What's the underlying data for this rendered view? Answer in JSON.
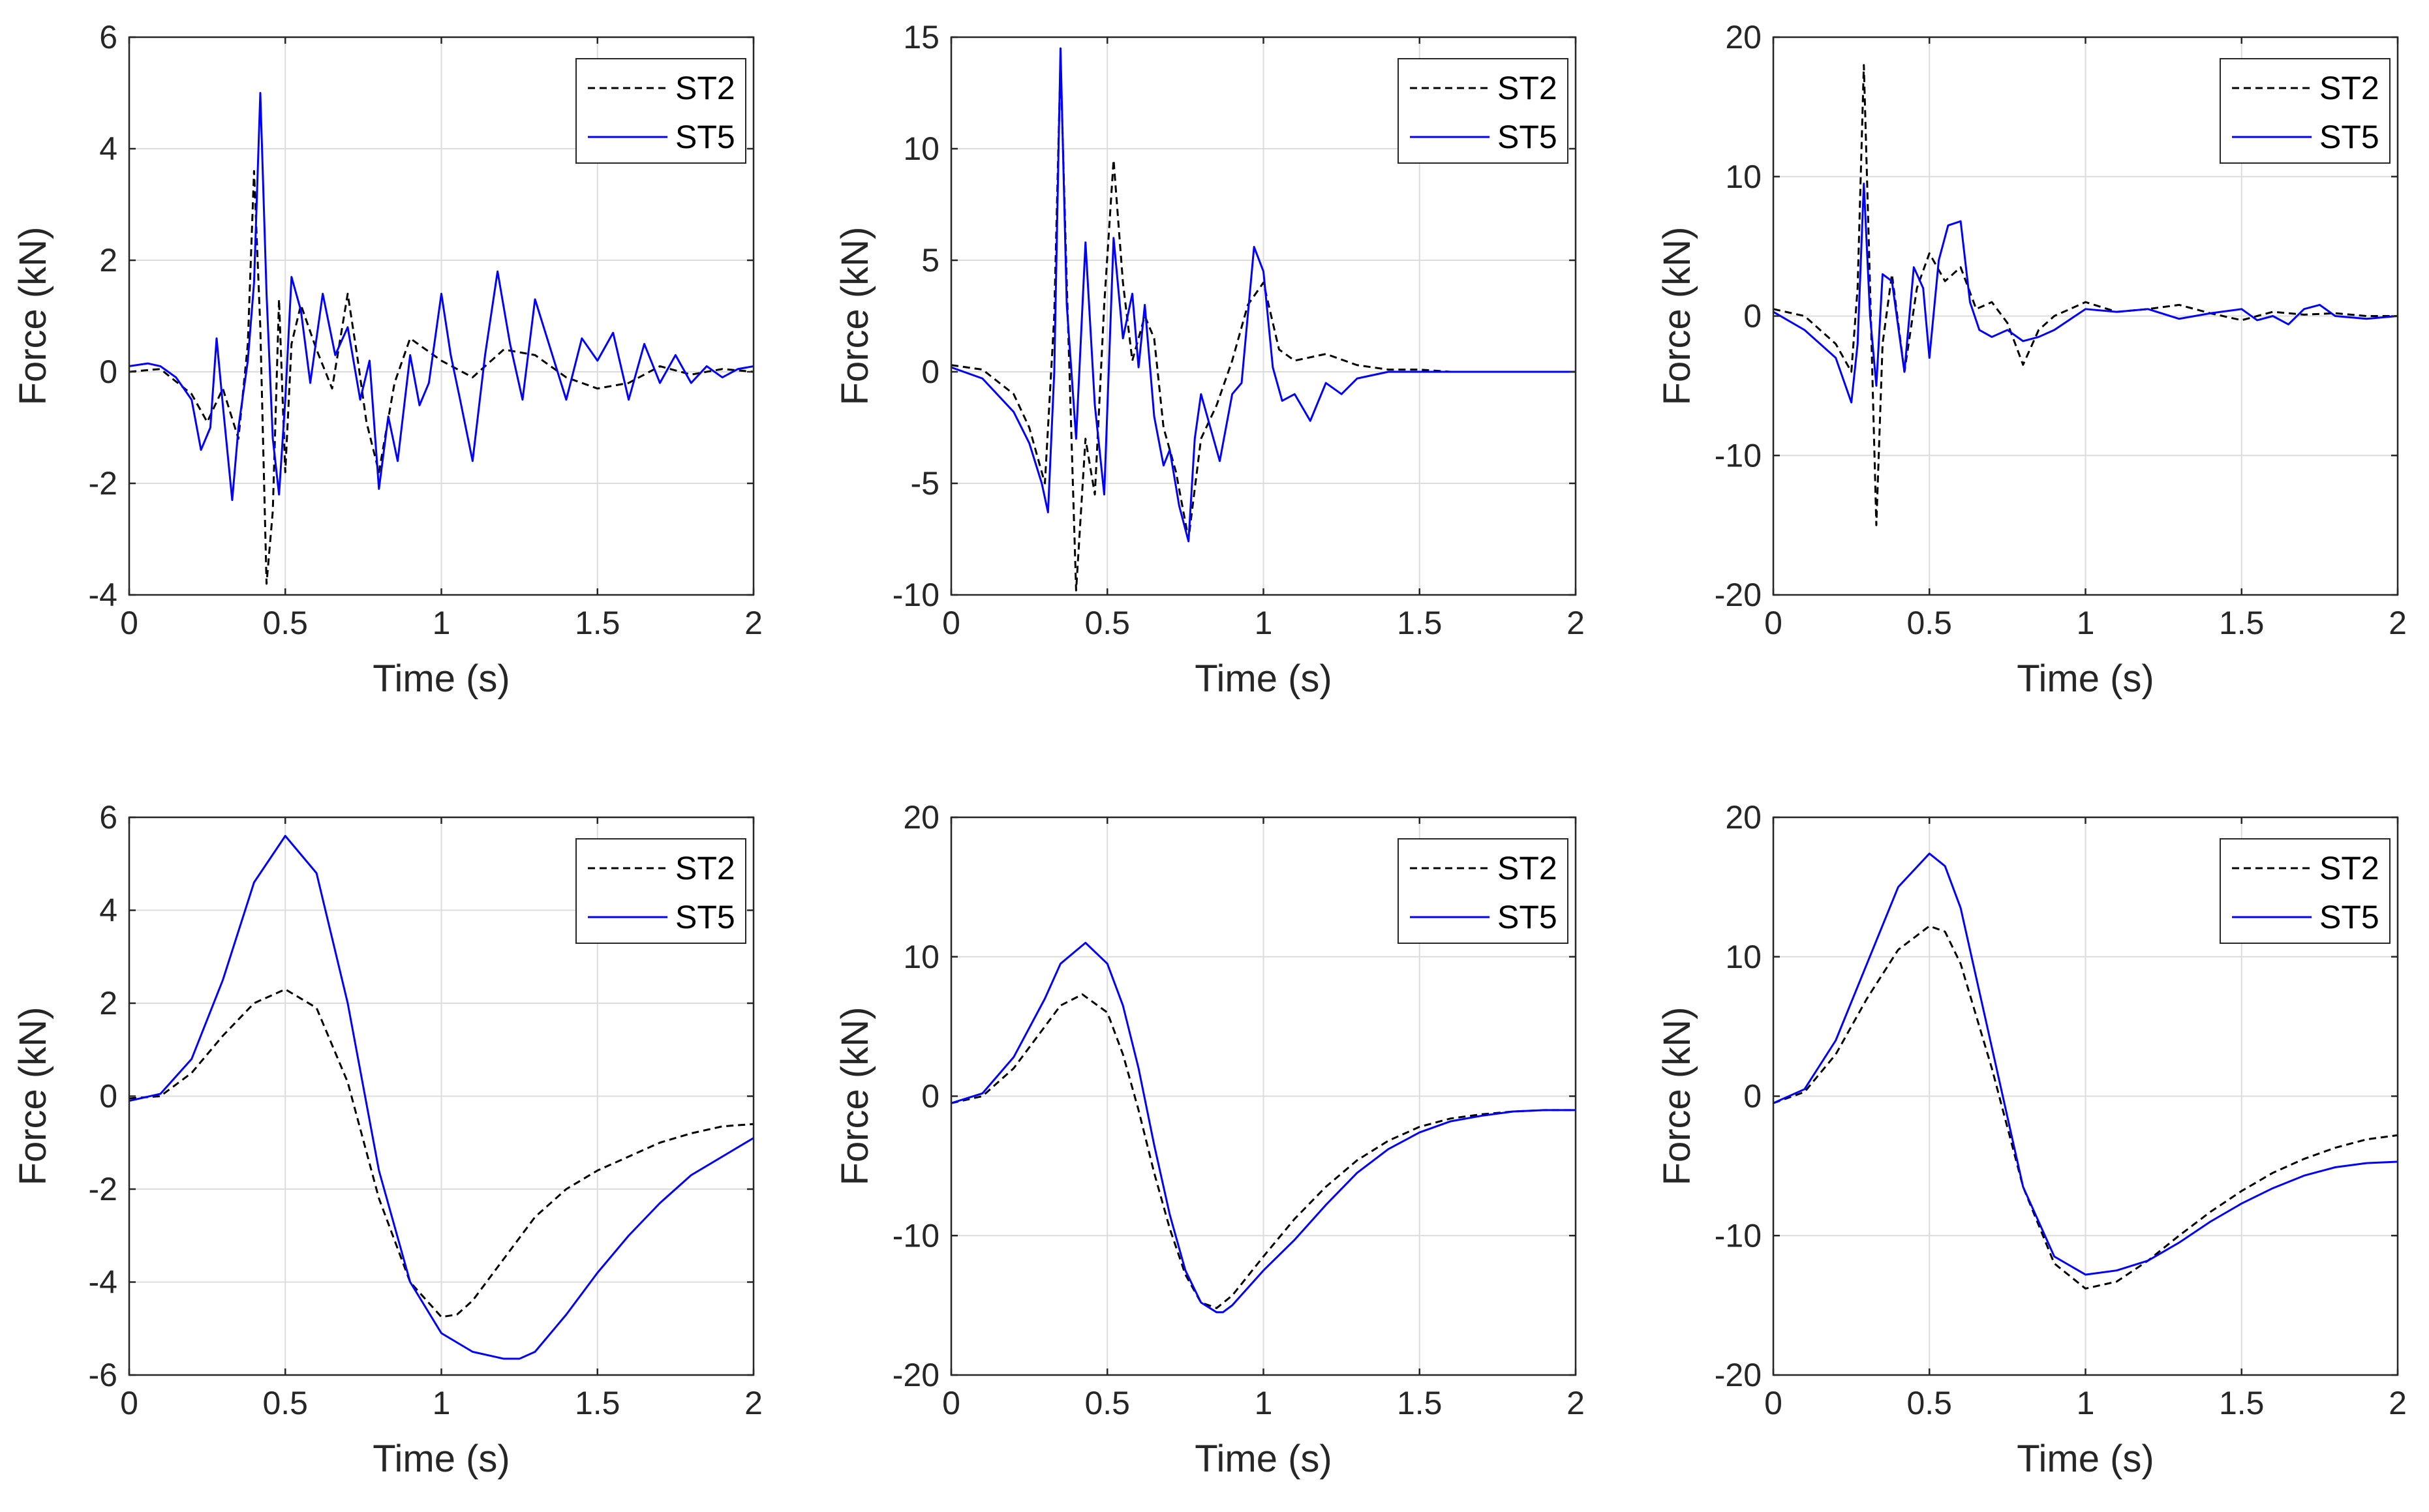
{
  "chart_data": [
    {
      "id": "top-left",
      "type": "line",
      "xlabel": "Time (s)",
      "ylabel": "Force (kN)",
      "xlim": [
        0,
        2
      ],
      "ylim": [
        -4,
        6
      ],
      "xticks": [
        0,
        0.5,
        1,
        1.5,
        2
      ],
      "xtick_labels": [
        "0",
        "0.5",
        "1",
        "1.5",
        "2"
      ],
      "yticks": [
        -4,
        -2,
        0,
        2,
        4,
        6
      ],
      "ytick_labels": [
        "-4",
        "-2",
        "0",
        "2",
        "4",
        "6"
      ],
      "grid": true,
      "legend_position": "top-right",
      "series": [
        {
          "name": "ST2",
          "style": "dashed",
          "color": "#000000",
          "x": [
            0,
            0.1,
            0.2,
            0.25,
            0.3,
            0.35,
            0.38,
            0.4,
            0.42,
            0.44,
            0.46,
            0.48,
            0.5,
            0.52,
            0.55,
            0.6,
            0.65,
            0.7,
            0.73,
            0.76,
            0.8,
            0.85,
            0.9,
            1.0,
            1.1,
            1.2,
            1.3,
            1.4,
            1.5,
            1.6,
            1.7,
            1.8,
            1.9,
            2.0
          ],
          "y": [
            0,
            0.05,
            -0.4,
            -0.9,
            -0.3,
            -1.2,
            0.5,
            3.6,
            0.8,
            -3.8,
            -2.5,
            1.3,
            -1.8,
            0.5,
            1.2,
            0.4,
            -0.3,
            1.4,
            0.3,
            -0.9,
            -1.8,
            -0.2,
            0.6,
            0.2,
            -0.1,
            0.4,
            0.3,
            -0.1,
            -0.3,
            -0.2,
            0.1,
            -0.05,
            0.05,
            0
          ]
        },
        {
          "name": "ST5",
          "style": "solid",
          "color": "#0000ff",
          "x": [
            0,
            0.06,
            0.1,
            0.15,
            0.2,
            0.23,
            0.26,
            0.28,
            0.3,
            0.33,
            0.35,
            0.38,
            0.4,
            0.42,
            0.44,
            0.46,
            0.48,
            0.5,
            0.52,
            0.55,
            0.58,
            0.62,
            0.66,
            0.7,
            0.74,
            0.77,
            0.8,
            0.83,
            0.86,
            0.9,
            0.93,
            0.96,
            1.0,
            1.03,
            1.06,
            1.1,
            1.14,
            1.18,
            1.22,
            1.26,
            1.3,
            1.35,
            1.4,
            1.45,
            1.5,
            1.55,
            1.6,
            1.65,
            1.7,
            1.75,
            1.8,
            1.85,
            1.9,
            1.95,
            2.0
          ],
          "y": [
            0.1,
            0.15,
            0.1,
            -0.1,
            -0.5,
            -1.4,
            -1.0,
            0.6,
            -0.6,
            -2.3,
            -1.0,
            0.2,
            1.6,
            5.0,
            1.4,
            -1.2,
            -2.2,
            -0.5,
            1.7,
            1.1,
            -0.2,
            1.4,
            0.3,
            0.8,
            -0.5,
            0.2,
            -2.1,
            -0.8,
            -1.6,
            0.3,
            -0.6,
            -0.2,
            1.4,
            0.3,
            -0.5,
            -1.6,
            0.3,
            1.8,
            0.5,
            -0.5,
            1.3,
            0.4,
            -0.5,
            0.6,
            0.2,
            0.7,
            -0.5,
            0.5,
            -0.2,
            0.3,
            -0.2,
            0.1,
            -0.1,
            0.05,
            0.1
          ]
        }
      ]
    },
    {
      "id": "top-middle",
      "type": "line",
      "xlabel": "Time (s)",
      "ylabel": "Force (kN)",
      "xlim": [
        0,
        2
      ],
      "ylim": [
        -10,
        15
      ],
      "xticks": [
        0,
        0.5,
        1,
        1.5,
        2
      ],
      "xtick_labels": [
        "0",
        "0.5",
        "1",
        "1.5",
        "2"
      ],
      "yticks": [
        -10,
        -5,
        0,
        5,
        10,
        15
      ],
      "ytick_labels": [
        "-10",
        "-5",
        "0",
        "5",
        "10",
        "15"
      ],
      "grid": true,
      "legend_position": "top-right",
      "series": [
        {
          "name": "ST2",
          "style": "dashed",
          "color": "#000000",
          "x": [
            0,
            0.1,
            0.2,
            0.25,
            0.3,
            0.33,
            0.35,
            0.37,
            0.4,
            0.43,
            0.46,
            0.49,
            0.52,
            0.55,
            0.58,
            0.62,
            0.65,
            0.68,
            0.72,
            0.76,
            0.8,
            0.85,
            0.9,
            0.95,
            1.0,
            1.05,
            1.1,
            1.2,
            1.3,
            1.4,
            1.5,
            1.6,
            1.8,
            2.0
          ],
          "y": [
            0.3,
            0.1,
            -1.0,
            -2.5,
            -5.0,
            2.5,
            14.0,
            4.0,
            -9.8,
            -3.0,
            -5.5,
            3.0,
            9.5,
            4.0,
            0.5,
            2.5,
            1.5,
            -2.5,
            -4.5,
            -7.5,
            -3.0,
            -1.5,
            0.5,
            3.0,
            4.0,
            1.0,
            0.5,
            0.8,
            0.3,
            0.1,
            0.1,
            0.0,
            0.0,
            0.0
          ]
        },
        {
          "name": "ST5",
          "style": "solid",
          "color": "#0000ff",
          "x": [
            0,
            0.1,
            0.2,
            0.25,
            0.29,
            0.31,
            0.33,
            0.35,
            0.37,
            0.4,
            0.43,
            0.46,
            0.49,
            0.52,
            0.55,
            0.58,
            0.6,
            0.62,
            0.65,
            0.68,
            0.7,
            0.73,
            0.76,
            0.78,
            0.8,
            0.83,
            0.86,
            0.9,
            0.93,
            0.97,
            1.0,
            1.03,
            1.06,
            1.1,
            1.15,
            1.2,
            1.25,
            1.3,
            1.4,
            1.5,
            1.6,
            1.8,
            2.0
          ],
          "y": [
            0.2,
            -0.3,
            -1.8,
            -3.2,
            -5.0,
            -6.3,
            0.0,
            14.5,
            3.0,
            -3.0,
            5.8,
            -1.5,
            -5.5,
            6.0,
            1.5,
            3.5,
            0.2,
            3.0,
            -2.0,
            -4.2,
            -3.5,
            -6.0,
            -7.6,
            -3.0,
            -1.0,
            -2.5,
            -4.0,
            -1.0,
            -0.5,
            5.6,
            4.5,
            0.2,
            -1.3,
            -1.0,
            -2.2,
            -0.5,
            -1.0,
            -0.3,
            0.0,
            0.0,
            0.0,
            0.0,
            0.0
          ]
        }
      ]
    },
    {
      "id": "top-right",
      "type": "line",
      "xlabel": "Time (s)",
      "ylabel": "Force (kN)",
      "xlim": [
        0,
        2
      ],
      "ylim": [
        -20,
        20
      ],
      "xticks": [
        0,
        0.5,
        1,
        1.5,
        2
      ],
      "xtick_labels": [
        "0",
        "0.5",
        "1",
        "1.5",
        "2"
      ],
      "yticks": [
        -20,
        -10,
        0,
        10,
        20
      ],
      "ytick_labels": [
        "-20",
        "-10",
        "0",
        "10",
        "20"
      ],
      "grid": true,
      "legend_position": "top-right",
      "series": [
        {
          "name": "ST2",
          "style": "dashed",
          "color": "#000000",
          "x": [
            0,
            0.1,
            0.2,
            0.25,
            0.27,
            0.29,
            0.31,
            0.33,
            0.35,
            0.38,
            0.42,
            0.46,
            0.5,
            0.55,
            0.6,
            0.65,
            0.7,
            0.75,
            0.8,
            0.85,
            0.9,
            1.0,
            1.1,
            1.2,
            1.3,
            1.4,
            1.5,
            1.6,
            1.7,
            1.8,
            1.9,
            2.0
          ],
          "y": [
            0.5,
            0,
            -2.0,
            -4.0,
            2.0,
            18.0,
            2.0,
            -15.0,
            -2.0,
            3.0,
            -4.0,
            2.0,
            4.5,
            2.5,
            3.5,
            0.5,
            1.0,
            -0.5,
            -3.5,
            -1.0,
            0.0,
            1.0,
            0.3,
            0.5,
            0.8,
            0.2,
            -0.3,
            0.3,
            0.1,
            0.2,
            0.0,
            0.0
          ]
        },
        {
          "name": "ST5",
          "style": "solid",
          "color": "#0000ff",
          "x": [
            0,
            0.1,
            0.2,
            0.25,
            0.27,
            0.29,
            0.31,
            0.33,
            0.35,
            0.38,
            0.42,
            0.45,
            0.48,
            0.5,
            0.53,
            0.56,
            0.6,
            0.63,
            0.66,
            0.7,
            0.75,
            0.8,
            0.85,
            0.9,
            1.0,
            1.1,
            1.2,
            1.3,
            1.4,
            1.5,
            1.55,
            1.6,
            1.65,
            1.7,
            1.75,
            1.8,
            1.9,
            2.0
          ],
          "y": [
            0.3,
            -1.0,
            -3.0,
            -6.2,
            -2.0,
            9.5,
            0.0,
            -5.0,
            3.0,
            2.5,
            -4.0,
            3.5,
            2.0,
            -3.0,
            4.0,
            6.5,
            6.8,
            1.0,
            -1.0,
            -1.5,
            -1.0,
            -1.8,
            -1.5,
            -1.0,
            0.5,
            0.3,
            0.5,
            -0.2,
            0.2,
            0.5,
            -0.3,
            0.0,
            -0.6,
            0.5,
            0.8,
            0.0,
            -0.2,
            0.0
          ]
        }
      ]
    },
    {
      "id": "bottom-left",
      "type": "line",
      "xlabel": "Time (s)",
      "ylabel": "Force (kN)",
      "xlim": [
        0,
        2
      ],
      "ylim": [
        -6,
        6
      ],
      "xticks": [
        0,
        0.5,
        1,
        1.5,
        2
      ],
      "xtick_labels": [
        "0",
        "0.5",
        "1",
        "1.5",
        "2"
      ],
      "yticks": [
        -6,
        -4,
        -2,
        0,
        2,
        4,
        6
      ],
      "ytick_labels": [
        "-6",
        "-4",
        "-2",
        "0",
        "2",
        "4",
        "6"
      ],
      "grid": true,
      "legend_position": "top-right",
      "series": [
        {
          "name": "ST2",
          "style": "dashed",
          "color": "#000000",
          "x": [
            0,
            0.1,
            0.2,
            0.3,
            0.4,
            0.5,
            0.6,
            0.7,
            0.8,
            0.9,
            1.0,
            1.05,
            1.1,
            1.2,
            1.3,
            1.4,
            1.5,
            1.6,
            1.7,
            1.8,
            1.9,
            2.0
          ],
          "y": [
            -0.05,
            0.0,
            0.5,
            1.3,
            2.0,
            2.3,
            1.9,
            0.3,
            -2.2,
            -4.0,
            -4.75,
            -4.7,
            -4.4,
            -3.5,
            -2.6,
            -2.0,
            -1.6,
            -1.3,
            -1.0,
            -0.8,
            -0.65,
            -0.6
          ]
        },
        {
          "name": "ST5",
          "style": "solid",
          "color": "#0000ff",
          "x": [
            0,
            0.1,
            0.2,
            0.3,
            0.4,
            0.5,
            0.6,
            0.7,
            0.8,
            0.9,
            1.0,
            1.1,
            1.2,
            1.25,
            1.3,
            1.4,
            1.5,
            1.6,
            1.7,
            1.8,
            1.9,
            2.0
          ],
          "y": [
            -0.1,
            0.05,
            0.8,
            2.5,
            4.6,
            5.6,
            4.8,
            2.0,
            -1.6,
            -4.0,
            -5.1,
            -5.5,
            -5.65,
            -5.65,
            -5.5,
            -4.7,
            -3.8,
            -3.0,
            -2.3,
            -1.7,
            -1.3,
            -0.9
          ]
        }
      ]
    },
    {
      "id": "bottom-middle",
      "type": "line",
      "xlabel": "Time (s)",
      "ylabel": "Force (kN)",
      "xlim": [
        0,
        2
      ],
      "ylim": [
        -20,
        20
      ],
      "xticks": [
        0,
        0.5,
        1,
        1.5,
        2
      ],
      "xtick_labels": [
        "0",
        "0.5",
        "1",
        "1.5",
        "2"
      ],
      "yticks": [
        -20,
        -10,
        0,
        10,
        20
      ],
      "ytick_labels": [
        "-20",
        "-10",
        "0",
        "10",
        "20"
      ],
      "grid": true,
      "legend_position": "top-right",
      "series": [
        {
          "name": "ST2",
          "style": "dashed",
          "color": "#000000",
          "x": [
            0,
            0.1,
            0.2,
            0.3,
            0.35,
            0.42,
            0.5,
            0.55,
            0.6,
            0.65,
            0.7,
            0.75,
            0.8,
            0.85,
            0.9,
            1.0,
            1.1,
            1.2,
            1.3,
            1.4,
            1.5,
            1.6,
            1.7,
            1.8,
            1.9,
            2.0
          ],
          "y": [
            -0.5,
            0.0,
            2.0,
            5.0,
            6.5,
            7.3,
            6.0,
            3.0,
            -1.0,
            -5.5,
            -9.5,
            -12.8,
            -14.8,
            -15.2,
            -14.3,
            -11.5,
            -8.8,
            -6.5,
            -4.6,
            -3.2,
            -2.2,
            -1.6,
            -1.3,
            -1.1,
            -1.0,
            -1.0
          ]
        },
        {
          "name": "ST5",
          "style": "solid",
          "color": "#0000ff",
          "x": [
            0,
            0.1,
            0.2,
            0.3,
            0.35,
            0.43,
            0.5,
            0.55,
            0.6,
            0.65,
            0.7,
            0.75,
            0.8,
            0.85,
            0.87,
            0.9,
            1.0,
            1.1,
            1.2,
            1.3,
            1.4,
            1.5,
            1.6,
            1.7,
            1.8,
            1.9,
            2.0
          ],
          "y": [
            -0.5,
            0.2,
            2.8,
            7.0,
            9.5,
            11.0,
            9.5,
            6.5,
            2.0,
            -3.5,
            -8.5,
            -12.5,
            -14.8,
            -15.5,
            -15.5,
            -15.0,
            -12.5,
            -10.3,
            -7.8,
            -5.5,
            -3.8,
            -2.6,
            -1.8,
            -1.4,
            -1.1,
            -1.0,
            -1.0
          ]
        }
      ]
    },
    {
      "id": "bottom-right",
      "type": "line",
      "xlabel": "Time (s)",
      "ylabel": "Force (kN)",
      "xlim": [
        0,
        2
      ],
      "ylim": [
        -20,
        20
      ],
      "xticks": [
        0,
        0.5,
        1,
        1.5,
        2
      ],
      "xtick_labels": [
        "0",
        "0.5",
        "1",
        "1.5",
        "2"
      ],
      "yticks": [
        -20,
        -10,
        0,
        10,
        20
      ],
      "ytick_labels": [
        "-20",
        "-10",
        "0",
        "10",
        "20"
      ],
      "grid": true,
      "legend_position": "top-right",
      "series": [
        {
          "name": "ST2",
          "style": "dashed",
          "color": "#000000",
          "x": [
            0,
            0.1,
            0.2,
            0.3,
            0.4,
            0.5,
            0.55,
            0.6,
            0.7,
            0.8,
            0.9,
            1.0,
            1.1,
            1.2,
            1.3,
            1.4,
            1.5,
            1.6,
            1.7,
            1.8,
            1.9,
            2.0
          ],
          "y": [
            -0.5,
            0.3,
            3.0,
            7.0,
            10.5,
            12.2,
            11.8,
            9.5,
            2.0,
            -6.5,
            -12.0,
            -13.8,
            -13.3,
            -11.8,
            -10.0,
            -8.3,
            -6.8,
            -5.5,
            -4.5,
            -3.7,
            -3.1,
            -2.8
          ]
        },
        {
          "name": "ST5",
          "style": "solid",
          "color": "#0000ff",
          "x": [
            0,
            0.1,
            0.2,
            0.3,
            0.4,
            0.5,
            0.55,
            0.6,
            0.7,
            0.8,
            0.9,
            1.0,
            1.1,
            1.2,
            1.3,
            1.4,
            1.5,
            1.6,
            1.7,
            1.8,
            1.9,
            2.0
          ],
          "y": [
            -0.5,
            0.5,
            4.0,
            9.5,
            15.0,
            17.4,
            16.5,
            13.5,
            3.5,
            -6.5,
            -11.5,
            -12.8,
            -12.5,
            -11.8,
            -10.5,
            -9.0,
            -7.7,
            -6.6,
            -5.7,
            -5.1,
            -4.8,
            -4.7
          ]
        }
      ]
    }
  ]
}
